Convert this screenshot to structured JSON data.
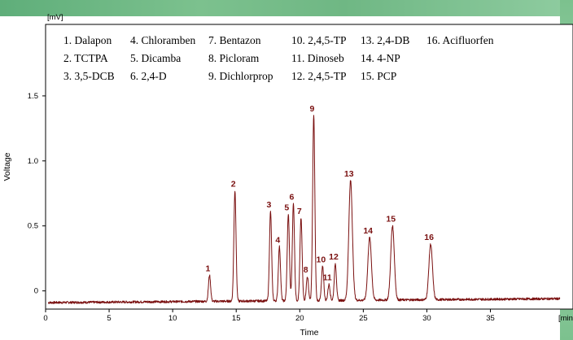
{
  "chart_data": {
    "type": "line",
    "title": "",
    "xlabel": "Time",
    "ylabel": "Voltage",
    "y_unit": "[mV]",
    "x_unit": "[min]",
    "xlim": [
      0,
      41.5
    ],
    "ylim": [
      -0.14,
      2.05
    ],
    "x_ticks": [
      "0",
      "5",
      "10",
      "15",
      "20",
      "25",
      "30",
      "35"
    ],
    "y_ticks": [
      "0",
      "0.5",
      "1.0",
      "1.5"
    ],
    "series_color": "#7a1010",
    "baseline": {
      "start": -0.09,
      "end": -0.06,
      "x_start": 0.2,
      "x_end": 40.5
    },
    "peaks": [
      {
        "label": "1",
        "x": 12.9,
        "y": 0.12
      },
      {
        "label": "2",
        "x": 14.9,
        "y": 0.77
      },
      {
        "label": "3",
        "x": 17.7,
        "y": 0.61
      },
      {
        "label": "4",
        "x": 18.4,
        "y": 0.34
      },
      {
        "label": "5",
        "x": 19.1,
        "y": 0.59
      },
      {
        "label": "6",
        "x": 19.5,
        "y": 0.67
      },
      {
        "label": "7",
        "x": 20.1,
        "y": 0.56
      },
      {
        "label": "8",
        "x": 20.6,
        "y": 0.11
      },
      {
        "label": "9",
        "x": 21.1,
        "y": 1.35
      },
      {
        "label": "10",
        "x": 21.8,
        "y": 0.19
      },
      {
        "label": "11",
        "x": 22.3,
        "y": 0.05
      },
      {
        "label": "12",
        "x": 22.8,
        "y": 0.21
      },
      {
        "label": "13",
        "x": 24.0,
        "y": 0.85
      },
      {
        "label": "14",
        "x": 25.5,
        "y": 0.41
      },
      {
        "label": "15",
        "x": 27.3,
        "y": 0.5
      },
      {
        "label": "16",
        "x": 30.3,
        "y": 0.36
      }
    ],
    "legend_rows": [
      [
        "1. Dalapon",
        "4. Chloramben",
        "7. Bentazon",
        "10. 2,4,5-TP",
        "13. 2,4-DB",
        "16. Acifluorfen"
      ],
      [
        "2. TCTPA",
        "5. Dicamba",
        "8.  Picloram",
        "11. Dinoseb",
        "14. 4-NP",
        ""
      ],
      [
        "3. 3,5-DCB",
        "6. 2,4-D",
        "9.  Dichlorprop",
        "12. 2,4,5-TP",
        "15. PCP",
        ""
      ]
    ]
  }
}
